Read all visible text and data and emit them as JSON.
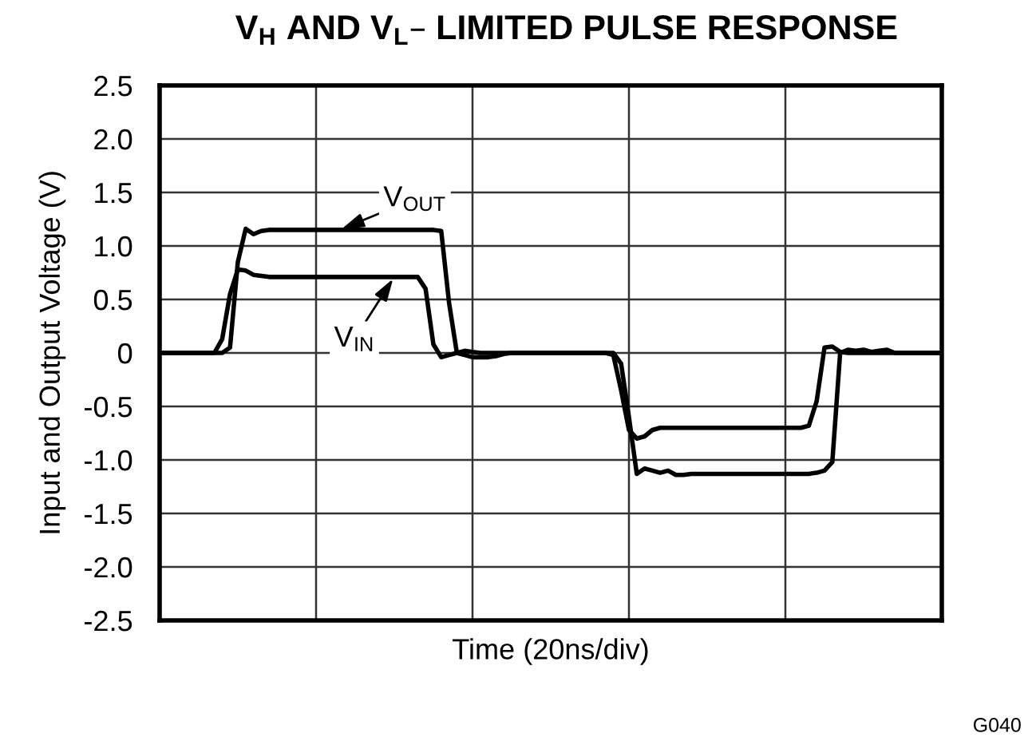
{
  "chart_data": {
    "type": "line",
    "title": "V$_{H}$ AND V$_{L}$– LIMITED PULSE RESPONSE",
    "xlabel": "Time (20ns/div)",
    "ylabel": "Input and Output Voltage (V)",
    "annotations": [
      "G040"
    ],
    "categories": [
      null,
      null,
      null,
      null,
      null,
      null,
      null,
      null,
      null,
      null,
      null,
      null,
      null,
      null,
      null,
      null,
      null,
      null,
      null,
      null,
      null,
      null,
      null,
      null,
      null,
      null,
      null,
      null,
      null,
      null,
      null,
      null,
      null,
      null,
      null,
      null,
      null,
      null,
      null,
      null,
      null,
      null,
      null,
      null,
      null,
      null,
      null,
      null,
      null,
      null,
      null,
      null,
      null,
      null,
      null,
      null,
      null,
      null,
      null,
      null,
      null,
      null,
      null,
      null,
      null,
      null,
      null,
      null,
      null,
      null,
      null,
      null,
      null,
      null,
      null,
      null,
      null,
      null,
      null,
      null,
      null,
      null,
      null,
      null,
      null,
      null,
      null,
      null,
      null,
      null,
      null,
      null,
      null,
      null,
      null,
      null,
      null,
      null,
      null,
      null,
      null
    ],
    "series": [
      {
        "name": "V$_{OUT}$",
        "color": "#000000",
        "values": [
          0,
          0,
          0,
          0,
          0,
          0,
          0,
          0,
          0,
          0.05,
          0.85,
          1.16,
          1.11,
          1.14,
          1.15,
          1.15,
          1.15,
          1.15,
          1.15,
          1.15,
          1.15,
          1.15,
          1.15,
          1.15,
          1.15,
          1.15,
          1.15,
          1.15,
          1.15,
          1.15,
          1.15,
          1.15,
          1.15,
          1.15,
          1.15,
          1.15,
          1.14,
          0.47,
          0,
          0.02,
          0.01,
          0,
          0,
          0,
          0,
          0,
          0,
          0,
          0,
          0,
          0,
          0,
          0,
          0,
          0,
          0,
          0,
          0,
          0,
          -0.1,
          -0.6,
          -1.13,
          -1.08,
          -1.1,
          -1.12,
          -1.1,
          -1.14,
          -1.14,
          -1.13,
          -1.13,
          -1.13,
          -1.13,
          -1.13,
          -1.13,
          -1.13,
          -1.13,
          -1.13,
          -1.13,
          -1.13,
          -1.13,
          -1.13,
          -1.13,
          -1.13,
          -1.13,
          -1.12,
          -1.1,
          -1.02,
          0,
          0.03,
          0.02,
          0.03,
          0.01,
          0.02,
          0.03,
          0,
          0,
          0,
          0,
          0,
          0,
          0
        ]
      },
      {
        "name": "V$_{IN}$",
        "color": "#000000",
        "values": [
          0,
          0,
          0,
          0,
          0,
          0,
          0,
          0,
          0.13,
          0.55,
          0.78,
          0.77,
          0.73,
          0.72,
          0.71,
          0.71,
          0.71,
          0.71,
          0.71,
          0.71,
          0.71,
          0.71,
          0.71,
          0.71,
          0.71,
          0.71,
          0.71,
          0.71,
          0.71,
          0.71,
          0.71,
          0.71,
          0.71,
          0.71,
          0.6,
          0.08,
          -0.04,
          -0.02,
          0,
          -0.02,
          -0.04,
          -0.04,
          -0.04,
          -0.03,
          -0.01,
          0,
          0,
          0,
          0,
          0,
          0,
          0,
          0,
          0,
          0,
          0,
          0,
          0,
          -0.02,
          -0.35,
          -0.72,
          -0.8,
          -0.78,
          -0.72,
          -0.7,
          -0.7,
          -0.7,
          -0.7,
          -0.7,
          -0.7,
          -0.7,
          -0.7,
          -0.7,
          -0.7,
          -0.7,
          -0.7,
          -0.7,
          -0.7,
          -0.7,
          -0.7,
          -0.7,
          -0.7,
          -0.7,
          -0.68,
          -0.45,
          0.05,
          0.06,
          0.01,
          0,
          0,
          0,
          0,
          0,
          0,
          0,
          0,
          0,
          0,
          0,
          0,
          0
        ]
      }
    ],
    "ylim": [
      -2.5,
      2.5
    ],
    "yticks": [
      2.5,
      {
        "value": 2,
        "label": "2.0"
      },
      1.5,
      {
        "value": 1,
        "label": "1.0"
      },
      0.5,
      0,
      -0.5,
      {
        "value": -1,
        "label": "-1.0"
      },
      -1.5,
      {
        "value": -2,
        "label": "-2.0"
      },
      -2.5
    ],
    "grid": true,
    "tick_labels": "y"
  }
}
